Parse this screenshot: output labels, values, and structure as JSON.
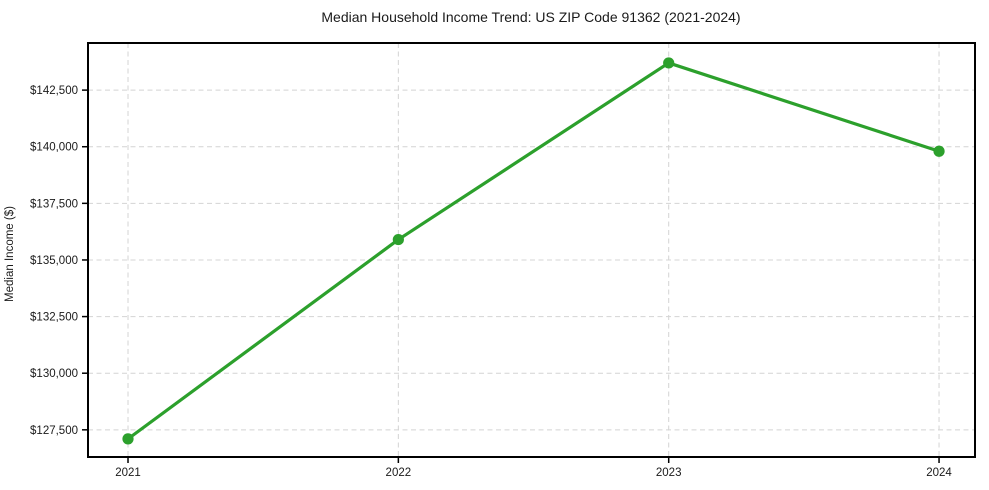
{
  "chart_data": {
    "type": "line",
    "title": "Median Household Income Trend: US ZIP Code 91362 (2021-2024)",
    "xlabel": "",
    "ylabel": "Median Income ($)",
    "x": [
      2021,
      2022,
      2023,
      2024
    ],
    "x_tick_labels": [
      "2021",
      "2022",
      "2023",
      "2024"
    ],
    "series": [
      {
        "name": "Median Household Income",
        "values": [
          127100,
          135900,
          143700,
          139800
        ]
      }
    ],
    "y_ticks": [
      142500,
      140000,
      137500,
      135000,
      132500,
      130000,
      127500
    ],
    "y_tick_labels": [
      "$142,500",
      "$140,000",
      "$137,500",
      "$135,000",
      "$132,500",
      "$130,000",
      "$127,500"
    ],
    "xlim": [
      2020.852,
      2024.133
    ],
    "ylim": [
      126300,
      144580
    ],
    "grid": true,
    "grid_line_style": "dashed",
    "legend_position": "none",
    "marker": "circle",
    "colors": {
      "line": "#2ca02c",
      "marker": "#2ca02c",
      "grid": "#d4d4d4",
      "axis": "#000000",
      "text": "#1a1a1a",
      "background": "#ffffff"
    }
  }
}
